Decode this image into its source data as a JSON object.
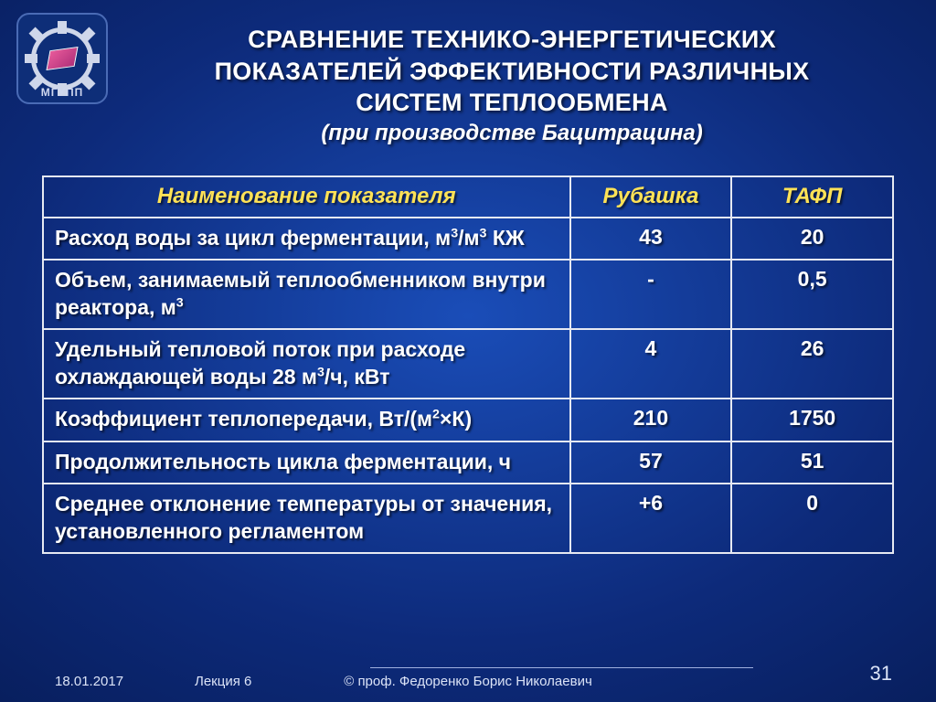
{
  "logo": {
    "label": "МГУПП"
  },
  "title": {
    "line1": "СРАВНЕНИЕ ТЕХНИКО-ЭНЕРГЕТИЧЕСКИХ",
    "line2": "ПОКАЗАТЕЛЕЙ ЭФФЕКТИВНОСТИ РАЗЛИЧНЫХ",
    "line3": "СИСТЕМ ТЕПЛООБМЕНА",
    "sub": "(при производстве Бацитрацина)"
  },
  "table": {
    "type": "table",
    "header_color": "#ffe256",
    "body_text_color": "#ffffff",
    "border_color": "#e6e9f2",
    "font_size_header": 24,
    "font_size_body": 23,
    "columns": [
      {
        "key": "name",
        "label": "Наименование показателя",
        "width_pct": 62,
        "align": "left"
      },
      {
        "key": "col1",
        "label": "Рубашка",
        "width_pct": 19,
        "align": "center"
      },
      {
        "key": "col2",
        "label": "ТАФП",
        "width_pct": 19,
        "align": "center"
      }
    ],
    "rows": [
      {
        "name_html": "Расход воды за цикл ферментации, м<sup>3</sup>/м<sup>3</sup> КЖ",
        "col1": "43",
        "col2": "20"
      },
      {
        "name_html": "Объем, занимаемый теплообменником внутри реактора, м<sup>3</sup>",
        "col1": "-",
        "col2": "0,5"
      },
      {
        "name_html": "Удельный тепловой поток при расходе охлаждающей воды 28 м<sup>3</sup>/ч, кВт",
        "col1": "4",
        "col2": "26"
      },
      {
        "name_html": "Коэффициент теплопередачи, Вт/(м<sup>2</sup>×К)",
        "col1": "210",
        "col2": "1750"
      },
      {
        "name_html": "Продолжительность цикла ферментации, ч",
        "col1": "57",
        "col2": "51"
      },
      {
        "name_html": "Среднее отклонение температуры от значения, установленного регламентом",
        "col1": "+6",
        "col2": "0"
      }
    ]
  },
  "footer": {
    "date": "18.01.2017",
    "lecture": "Лекция 6",
    "author": "© проф. Федоренко Борис Николаевич",
    "page": "31"
  },
  "style": {
    "bg_gradient_inner": "#1a4db8",
    "bg_gradient_mid": "#0d2a7a",
    "bg_gradient_outer": "#061a52",
    "title_color": "#ffffff",
    "title_font_size": 27,
    "subtitle_font_size": 24,
    "footer_color": "#dbe3f7",
    "footer_font_size": 15,
    "page_number_font_size": 22
  }
}
